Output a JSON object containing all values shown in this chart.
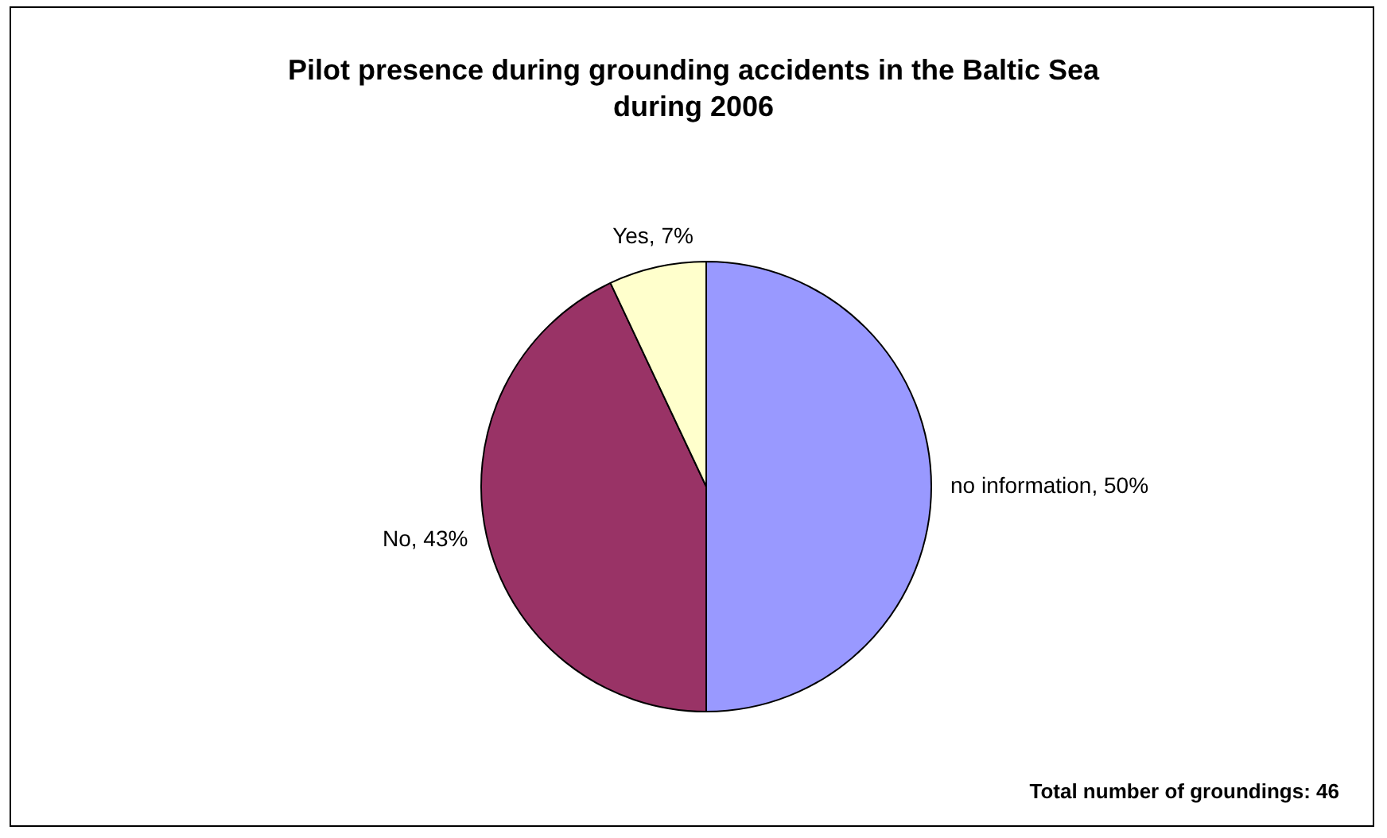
{
  "chart_data": {
    "type": "pie",
    "title": "Pilot presence during grounding accidents in the Baltic Sea during 2006",
    "categories": [
      "no information",
      "No",
      "Yes"
    ],
    "values": [
      50,
      43,
      7
    ],
    "colors": [
      "#9999ff",
      "#993366",
      "#ffffcc"
    ],
    "value_labels": [
      "50%",
      "43%",
      "7%"
    ],
    "annotations": [
      "Total number of groundings: 46"
    ],
    "legend": false
  }
}
